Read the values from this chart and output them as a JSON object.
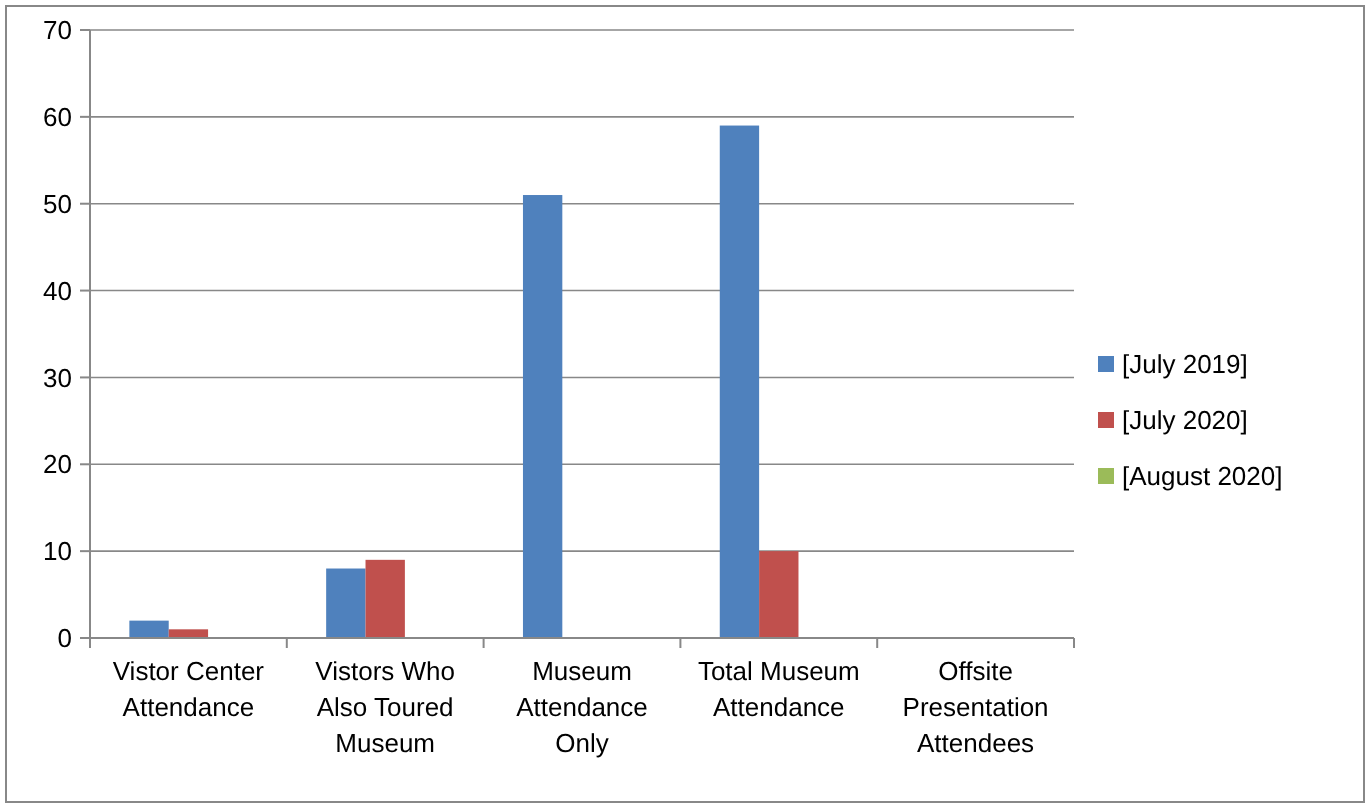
{
  "chart_data": {
    "type": "bar",
    "categories": [
      "Vistor Center Attendance",
      "Vistors Who Also Toured Museum",
      "Museum Attendance Only",
      "Total Museum Attendance",
      "Offsite Presentation Attendees"
    ],
    "series": [
      {
        "name": "[July 2019]",
        "color": "#4f81bd",
        "values": [
          2,
          8,
          51,
          59,
          null
        ]
      },
      {
        "name": "[July 2020]",
        "color": "#c0504d",
        "values": [
          1,
          9,
          null,
          10,
          null
        ]
      },
      {
        "name": "[August 2020]",
        "color": "#9bbb59",
        "values": [
          null,
          null,
          null,
          null,
          null
        ]
      }
    ],
    "ylim": [
      0,
      70
    ],
    "yticks": [
      0,
      10,
      20,
      30,
      40,
      50,
      60,
      70
    ],
    "grid": "y",
    "legend": "right"
  }
}
